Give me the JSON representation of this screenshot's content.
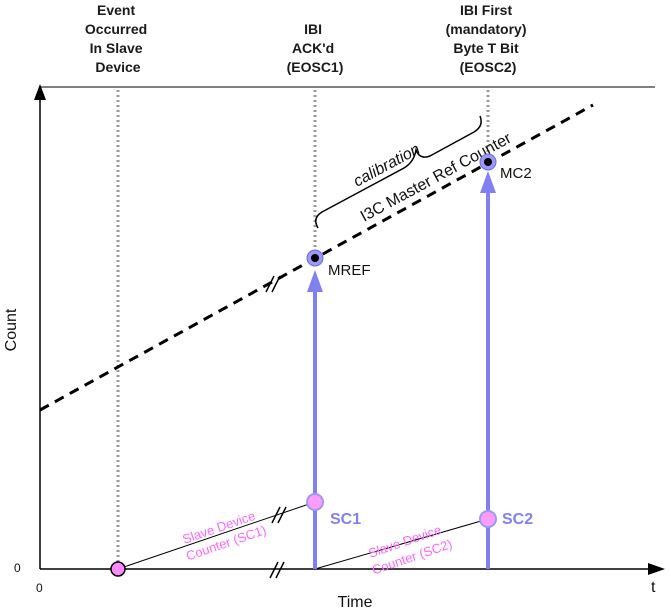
{
  "headers": {
    "event": [
      "Event",
      "Occurred",
      "In Slave",
      "Device"
    ],
    "ibi_ack": [
      "IBI",
      "ACK'd",
      "(EOSC1)"
    ],
    "ibi_first": [
      "IBI First",
      "(mandatory)",
      "Byte T Bit",
      "(EOSC2)"
    ]
  },
  "axes": {
    "y_label": "Count",
    "x_label": "Time",
    "origin_x": "0",
    "origin_y": "0",
    "x_end": "t"
  },
  "labels": {
    "calibration": "calibration",
    "master_ref_counter": "I3C Master Ref Counter",
    "mref": "MREF",
    "mc2": "MC2",
    "sc1": "SC1",
    "sc2": "SC2",
    "slave_counter_sc1": [
      "Slave Device",
      "Counter (SC1)"
    ],
    "slave_counter_sc2": [
      "Slave Device",
      "Counter (SC2)"
    ]
  },
  "colors": {
    "arrow": "#8080f0",
    "pink": "#ff66ff",
    "axis": "#000000",
    "guide": "#999999"
  }
}
